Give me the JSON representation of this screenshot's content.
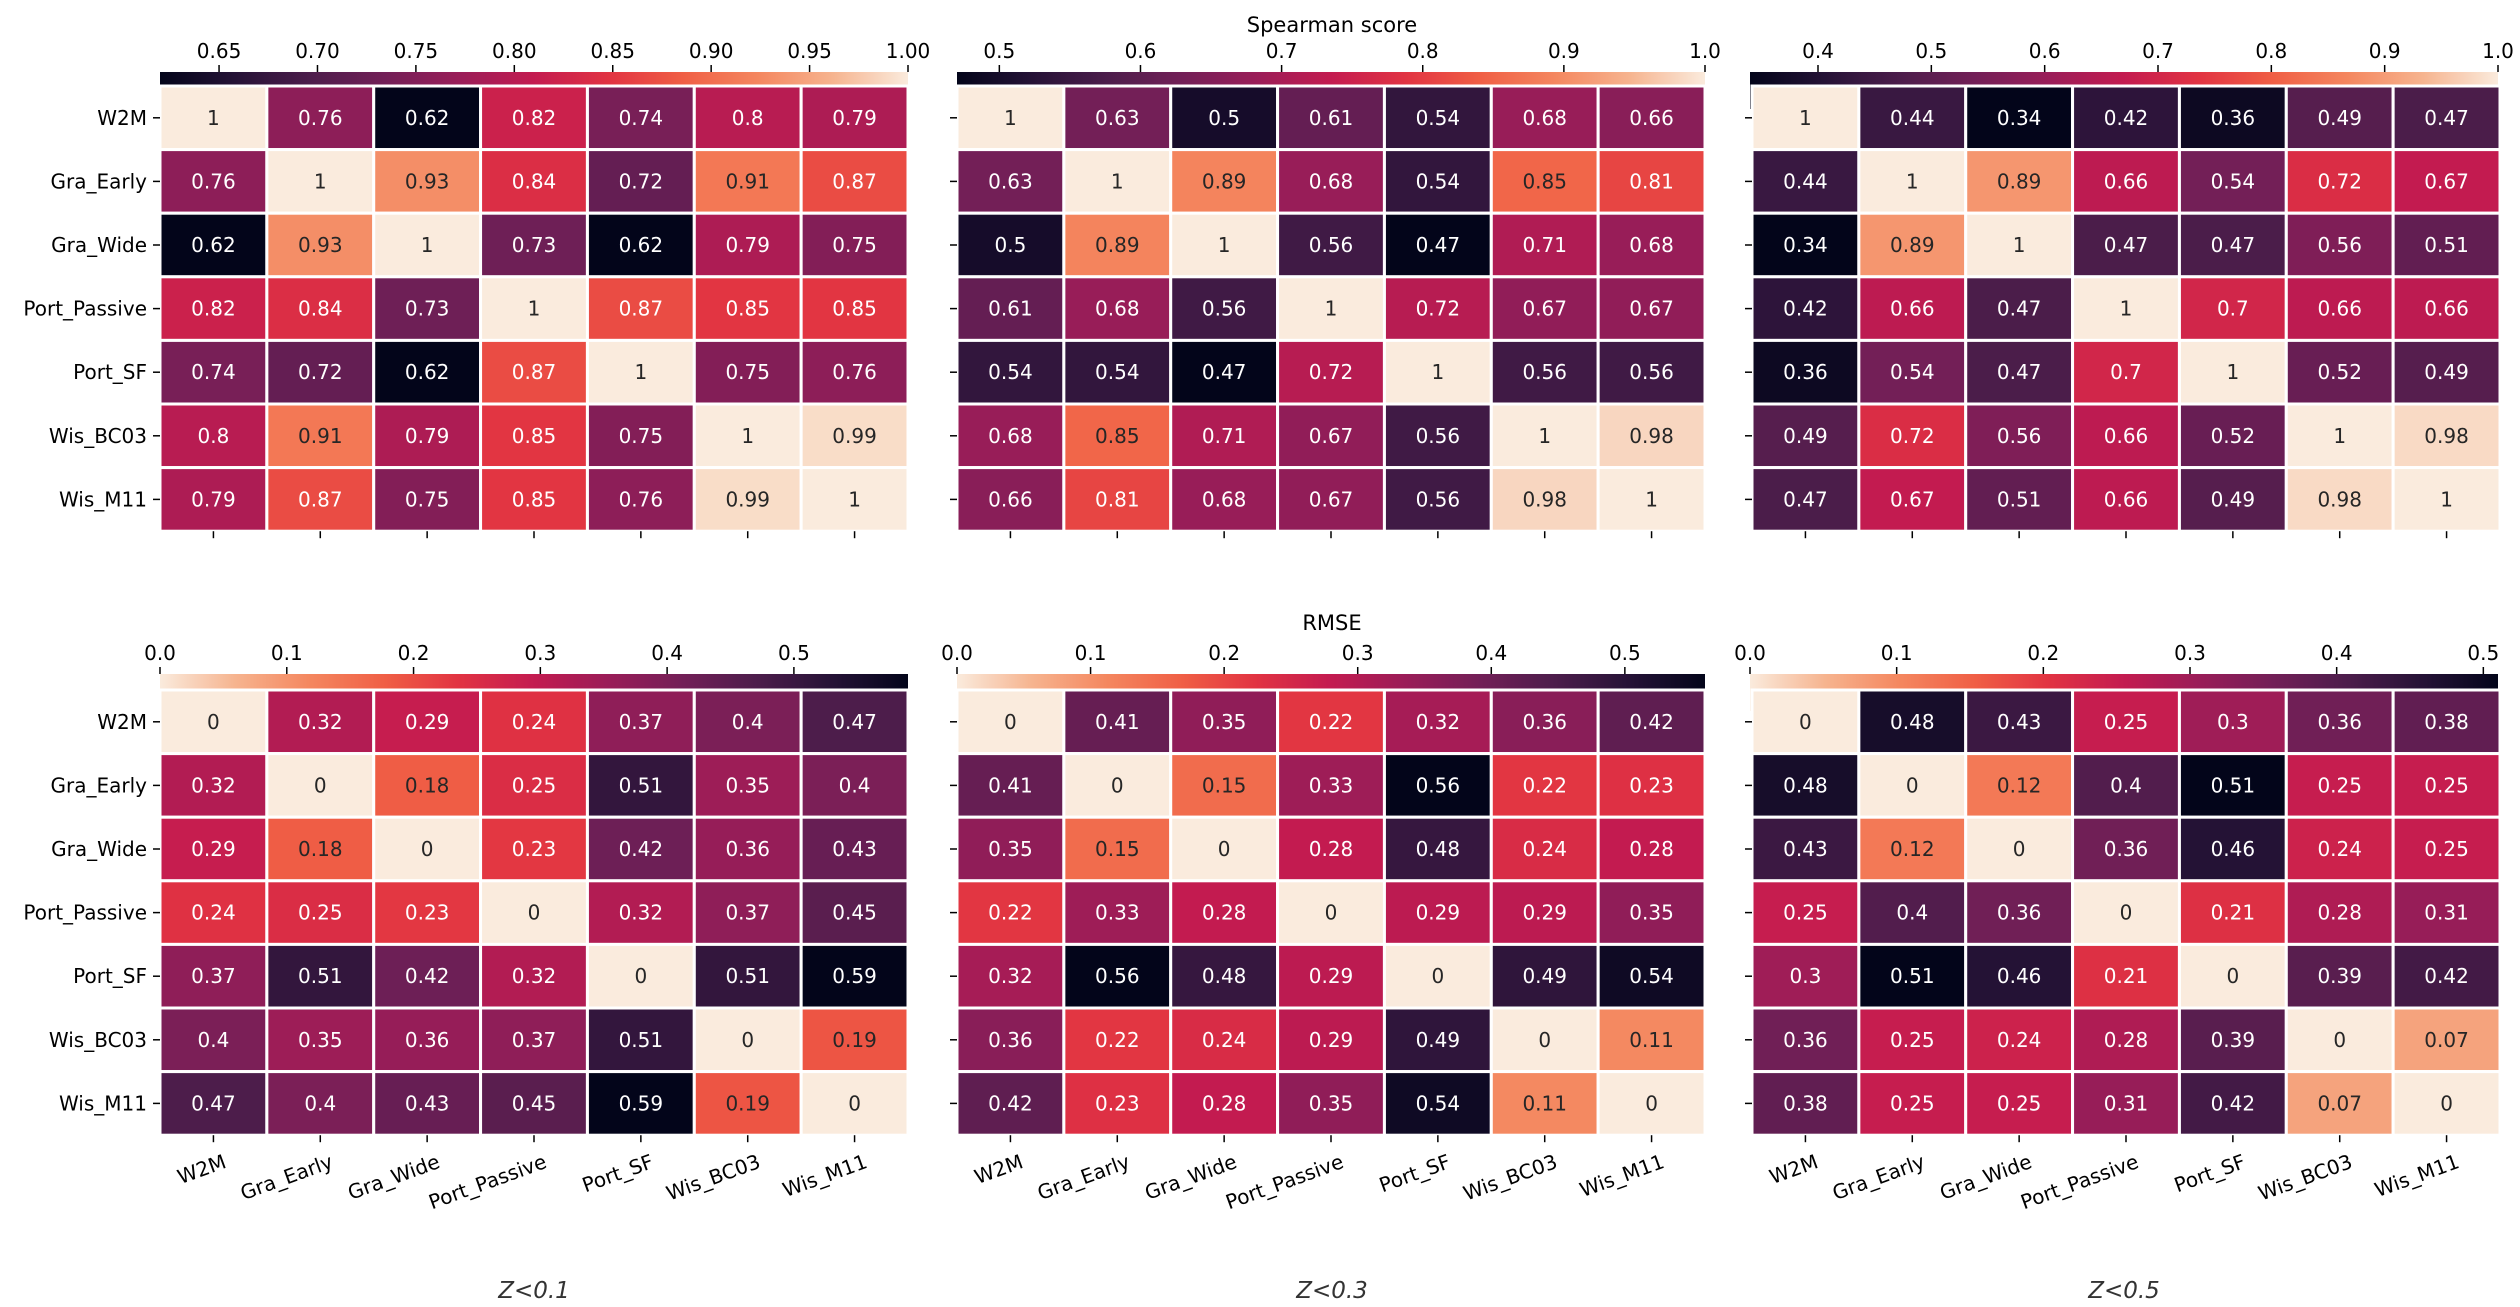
{
  "labels": [
    "W2M",
    "Gra_Early",
    "Gra_Wide",
    "Port_Passive",
    "Port_SF",
    "Wis_BC03",
    "Wis_M11"
  ],
  "colorbar_titles": {
    "spearman": "Spearman score",
    "rmse": "RMSE"
  },
  "colors": {
    "grid": "#ffffff",
    "tick": "#000000"
  },
  "chart_data": [
    {
      "type": "heatmap",
      "metric": "Spearman score",
      "subset": "Z<0.1",
      "colorbar_range": [
        0.62,
        1.0
      ],
      "colormap": "rocket",
      "colorbar_ticks": [
        0.65,
        0.7,
        0.75,
        0.8,
        0.85,
        0.9,
        0.95,
        1.0
      ],
      "colorbar_tick_labels": [
        "0.65",
        "0.70",
        "0.75",
        "0.80",
        "0.85",
        "0.90",
        "0.95",
        "1.00"
      ],
      "values": [
        [
          1,
          0.76,
          0.62,
          0.82,
          0.74,
          0.8,
          0.79
        ],
        [
          0.76,
          1,
          0.93,
          0.84,
          0.72,
          0.91,
          0.87
        ],
        [
          0.62,
          0.93,
          1,
          0.73,
          0.62,
          0.79,
          0.75
        ],
        [
          0.82,
          0.84,
          0.73,
          1,
          0.87,
          0.85,
          0.85
        ],
        [
          0.74,
          0.72,
          0.62,
          0.87,
          1,
          0.75,
          0.76
        ],
        [
          0.8,
          0.91,
          0.79,
          0.85,
          0.75,
          1,
          0.99
        ],
        [
          0.79,
          0.87,
          0.75,
          0.85,
          0.76,
          0.99,
          1
        ]
      ]
    },
    {
      "type": "heatmap",
      "metric": "Spearman score",
      "subset": "Z<0.3",
      "colorbar_range": [
        0.47,
        1.0
      ],
      "colormap": "rocket",
      "colorbar_ticks": [
        0.5,
        0.6,
        0.7,
        0.8,
        0.9,
        1.0
      ],
      "colorbar_tick_labels": [
        "0.5",
        "0.6",
        "0.7",
        "0.8",
        "0.9",
        "1.0"
      ],
      "values": [
        [
          1,
          0.63,
          0.5,
          0.61,
          0.54,
          0.68,
          0.66
        ],
        [
          0.63,
          1,
          0.89,
          0.68,
          0.54,
          0.85,
          0.81
        ],
        [
          0.5,
          0.89,
          1,
          0.56,
          0.47,
          0.71,
          0.68
        ],
        [
          0.61,
          0.68,
          0.56,
          1,
          0.72,
          0.67,
          0.67
        ],
        [
          0.54,
          0.54,
          0.47,
          0.72,
          1,
          0.56,
          0.56
        ],
        [
          0.68,
          0.85,
          0.71,
          0.67,
          0.56,
          1,
          0.98
        ],
        [
          0.66,
          0.81,
          0.68,
          0.67,
          0.56,
          0.98,
          1
        ]
      ]
    },
    {
      "type": "heatmap",
      "metric": "Spearman score",
      "subset": "Z<0.5",
      "colorbar_range": [
        0.34,
        1.0
      ],
      "colormap": "rocket",
      "colorbar_ticks": [
        0.4,
        0.5,
        0.6,
        0.7,
        0.8,
        0.9,
        1.0
      ],
      "colorbar_tick_labels": [
        "0.4",
        "0.5",
        "0.6",
        "0.7",
        "0.8",
        "0.9",
        "1.0"
      ],
      "values": [
        [
          1,
          0.44,
          0.34,
          0.42,
          0.36,
          0.49,
          0.47
        ],
        [
          0.44,
          1,
          0.89,
          0.66,
          0.54,
          0.72,
          0.67
        ],
        [
          0.34,
          0.89,
          1,
          0.47,
          0.47,
          0.56,
          0.51
        ],
        [
          0.42,
          0.66,
          0.47,
          1,
          0.7,
          0.66,
          0.66
        ],
        [
          0.36,
          0.54,
          0.47,
          0.7,
          1,
          0.52,
          0.49
        ],
        [
          0.49,
          0.72,
          0.56,
          0.66,
          0.52,
          1,
          0.98
        ],
        [
          0.47,
          0.67,
          0.51,
          0.66,
          0.49,
          0.98,
          1
        ]
      ]
    },
    {
      "type": "heatmap",
      "metric": "RMSE",
      "subset": "Z<0.1",
      "colorbar_range": [
        0.0,
        0.59
      ],
      "colormap": "rocket_r",
      "colorbar_ticks": [
        0.0,
        0.1,
        0.2,
        0.3,
        0.4,
        0.5
      ],
      "colorbar_tick_labels": [
        "0.0",
        "0.1",
        "0.2",
        "0.3",
        "0.4",
        "0.5"
      ],
      "values": [
        [
          0,
          0.32,
          0.29,
          0.24,
          0.37,
          0.4,
          0.47
        ],
        [
          0.32,
          0,
          0.18,
          0.25,
          0.51,
          0.35,
          0.4
        ],
        [
          0.29,
          0.18,
          0,
          0.23,
          0.42,
          0.36,
          0.43
        ],
        [
          0.24,
          0.25,
          0.23,
          0,
          0.32,
          0.37,
          0.45
        ],
        [
          0.37,
          0.51,
          0.42,
          0.32,
          0,
          0.51,
          0.59
        ],
        [
          0.4,
          0.35,
          0.36,
          0.37,
          0.51,
          0,
          0.19
        ],
        [
          0.47,
          0.4,
          0.43,
          0.45,
          0.59,
          0.19,
          0
        ]
      ]
    },
    {
      "type": "heatmap",
      "metric": "RMSE",
      "subset": "Z<0.3",
      "colorbar_range": [
        0.0,
        0.56
      ],
      "colormap": "rocket_r",
      "colorbar_ticks": [
        0.0,
        0.1,
        0.2,
        0.3,
        0.4,
        0.5
      ],
      "colorbar_tick_labels": [
        "0.0",
        "0.1",
        "0.2",
        "0.3",
        "0.4",
        "0.5"
      ],
      "values": [
        [
          0,
          0.41,
          0.35,
          0.22,
          0.32,
          0.36,
          0.42
        ],
        [
          0.41,
          0,
          0.15,
          0.33,
          0.56,
          0.22,
          0.23
        ],
        [
          0.35,
          0.15,
          0,
          0.28,
          0.48,
          0.24,
          0.28
        ],
        [
          0.22,
          0.33,
          0.28,
          0,
          0.29,
          0.29,
          0.35
        ],
        [
          0.32,
          0.56,
          0.48,
          0.29,
          0,
          0.49,
          0.54
        ],
        [
          0.36,
          0.22,
          0.24,
          0.29,
          0.49,
          0,
          0.11
        ],
        [
          0.42,
          0.23,
          0.28,
          0.35,
          0.54,
          0.11,
          0
        ]
      ]
    },
    {
      "type": "heatmap",
      "metric": "RMSE",
      "subset": "Z<0.5",
      "colorbar_range": [
        0.0,
        0.51
      ],
      "colormap": "rocket_r",
      "colorbar_ticks": [
        0.0,
        0.1,
        0.2,
        0.3,
        0.4,
        0.5
      ],
      "colorbar_tick_labels": [
        "0.0",
        "0.1",
        "0.2",
        "0.3",
        "0.4",
        "0.5"
      ],
      "values": [
        [
          0,
          0.48,
          0.43,
          0.25,
          0.3,
          0.36,
          0.38
        ],
        [
          0.48,
          0,
          0.12,
          0.4,
          0.51,
          0.25,
          0.25
        ],
        [
          0.43,
          0.12,
          0,
          0.36,
          0.46,
          0.24,
          0.25
        ],
        [
          0.25,
          0.4,
          0.36,
          0,
          0.21,
          0.28,
          0.31
        ],
        [
          0.3,
          0.51,
          0.46,
          0.21,
          0,
          0.39,
          0.42
        ],
        [
          0.36,
          0.25,
          0.24,
          0.28,
          0.39,
          0,
          0.07
        ],
        [
          0.38,
          0.25,
          0.25,
          0.31,
          0.42,
          0.07,
          0
        ]
      ]
    }
  ]
}
